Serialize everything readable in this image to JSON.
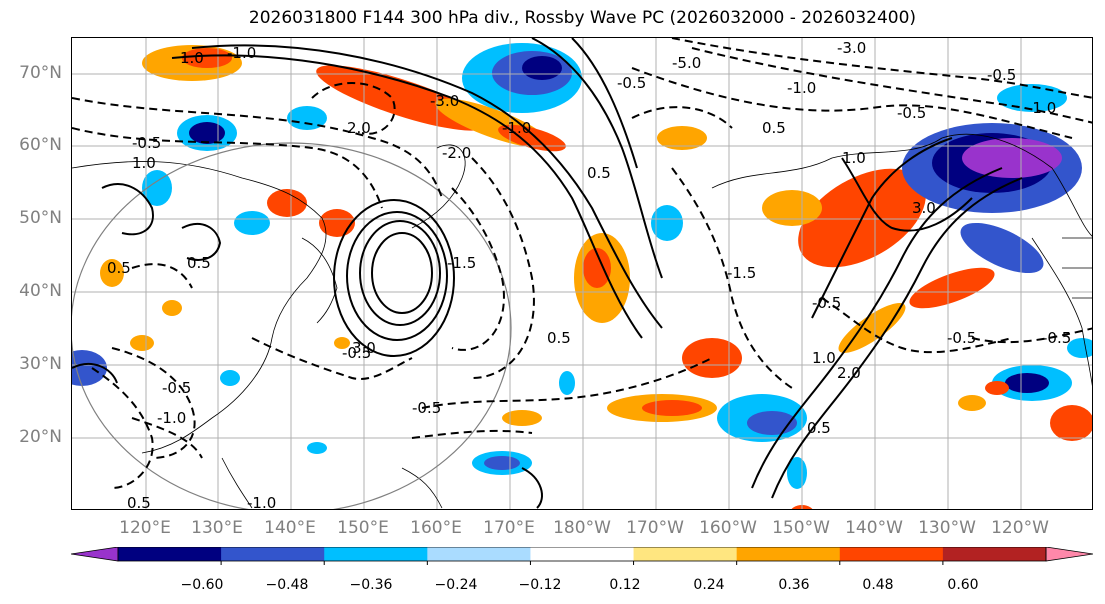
{
  "title": "2026031800 F144 300 hPa div., Rossby Wave PC (2026032000 - 2026032400)",
  "lat_labels": [
    "70°N",
    "60°N",
    "50°N",
    "40°N",
    "30°N",
    "20°N"
  ],
  "lon_labels": [
    "120°E",
    "130°E",
    "140°E",
    "150°E",
    "160°E",
    "170°E",
    "180°W",
    "170°W",
    "160°W",
    "150°W",
    "140°W",
    "130°W",
    "120°W"
  ],
  "colorbar": {
    "colors": [
      "#9933cc",
      "#000080",
      "#3355cc",
      "#00bfff",
      "#aadcff",
      "#ffffff",
      "#ffe680",
      "#ffa500",
      "#ff4500",
      "#b22222",
      "#ff88aa"
    ],
    "tick_labels": [
      "−0.60",
      "−0.48",
      "−0.36",
      "−0.24",
      "−0.12",
      "0.12",
      "0.24",
      "0.36",
      "0.48",
      "0.60"
    ]
  },
  "contour_labels": [
    "1.0",
    "-1.0",
    "-0.5",
    "0.5",
    "0.5",
    "-0.5",
    "2.0",
    "-3.0",
    "3.0",
    "-1.0",
    "-5.0",
    "-3.0",
    "-1.0",
    "-0.5",
    "-1.0",
    "-0.5",
    "1.0",
    "3.0",
    "-0.5",
    "-0.5",
    "0.5",
    "1.0",
    "2.0",
    "-0.5",
    "0.5",
    "-0.5",
    "1.0",
    "0.5",
    "-1.0",
    "-0.5",
    "0.5",
    "-0.5",
    "-1.0",
    "-2.0",
    "-1.5",
    "0.5",
    "-1.5"
  ]
}
